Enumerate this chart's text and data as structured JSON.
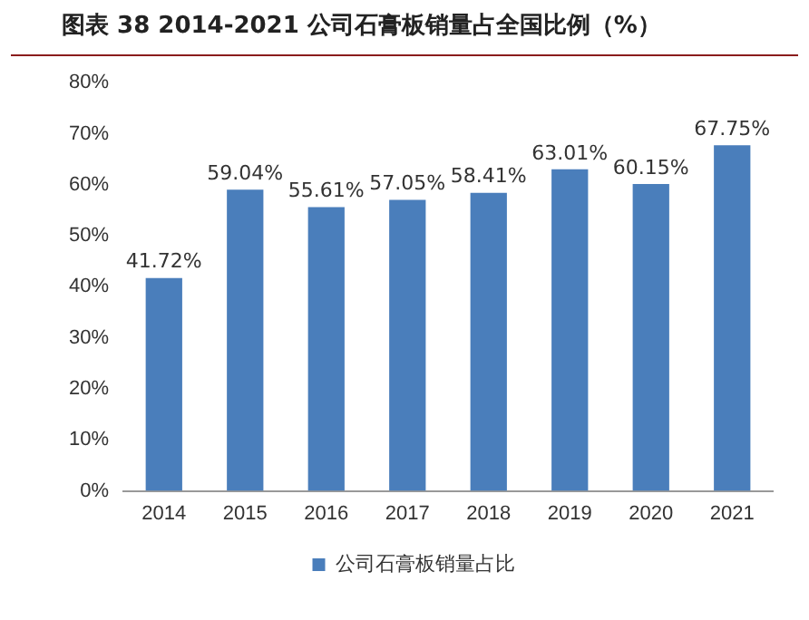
{
  "chart_data": {
    "type": "bar",
    "title": "图表 38 2014-2021 公司石膏板销量占全国比例（%）",
    "categories": [
      "2014",
      "2015",
      "2016",
      "2017",
      "2018",
      "2019",
      "2020",
      "2021"
    ],
    "series": [
      {
        "name": "公司石膏板销量占比",
        "color": "#4a7ebb",
        "values": [
          41.72,
          59.04,
          55.61,
          57.05,
          58.41,
          63.01,
          60.15,
          67.75
        ],
        "value_labels": [
          "41.72%",
          "59.04%",
          "55.61%",
          "57.05%",
          "58.41%",
          "63.01%",
          "60.15%",
          "67.75%"
        ]
      }
    ],
    "ylim": [
      0,
      80
    ],
    "yticks": [
      {
        "value": 0,
        "label": "0%"
      },
      {
        "value": 10,
        "label": "10%"
      },
      {
        "value": 20,
        "label": "20%"
      },
      {
        "value": 30,
        "label": "30%"
      },
      {
        "value": 40,
        "label": "40%"
      },
      {
        "value": 50,
        "label": "50%"
      },
      {
        "value": 60,
        "label": "60%"
      },
      {
        "value": 70,
        "label": "70%"
      },
      {
        "value": 80,
        "label": "80%"
      }
    ],
    "grid": false,
    "legend": "bottom"
  }
}
